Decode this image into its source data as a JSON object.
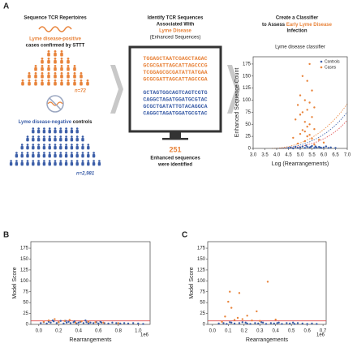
{
  "panel_a": {
    "label": "A",
    "left": {
      "title": "Sequence TCR Repertoires",
      "positive_label": "Lyme disease-positive",
      "positive_sub": "cases confirmed by STTT",
      "n_pos": "n=72",
      "negative_label": "Lyme disease-negative",
      "negative_suffix": "controls",
      "n_neg": "n=2,981"
    },
    "middle": {
      "title_line1": "Identify TCR Sequences",
      "title_line2": "Associated With",
      "highlight": "Lyme Disease",
      "subtitle": "(Enhanced Sequences)",
      "sequences_orange": [
        "TGGAGCTAATCGAGCTAGAC",
        "GCGCGATTAGCATTAGCCCG",
        "TCGGAGCGCGATATTATGAA",
        "GCGCGATTAGCATTAGCCGA"
      ],
      "sequences_blue": [
        "GCTAGTGGCAGTCAGTCGTG",
        "CAGGCTAGATGGATGCGTAC",
        "GCGCTGATATTGTACAGGCA",
        "CAGGCTAGATGGATGCGTAC"
      ],
      "count": "251",
      "count_line1": "Enhanced sequences",
      "count_line2": "were identified"
    },
    "right": {
      "title_line1": "Create a Classifier",
      "title_prefix": "to Assess",
      "highlight": "Early Lyme Disease",
      "title_line3": "Infection"
    }
  },
  "panel_b_label": "B",
  "panel_c_label": "C",
  "chart_data": [
    {
      "type": "scatter",
      "title": "Lyme disease classifier",
      "x_label": "Log (Rearrangements)",
      "y_label": "Enhanced Sequence Count",
      "xlim": [
        3.0,
        7.0
      ],
      "xticks": [
        {
          "value": 3,
          "label": "3.0"
        },
        {
          "value": 3.5,
          "label": "3.5"
        },
        {
          "value": 4,
          "label": "4.0"
        },
        {
          "value": 4.5,
          "label": "4.5"
        },
        {
          "value": 5,
          "label": "5.0"
        },
        {
          "value": 5.5,
          "label": "5.5"
        },
        {
          "value": 6,
          "label": "6.0"
        },
        {
          "value": 6.5,
          "label": "6.5"
        },
        {
          "value": 7,
          "label": "7.0"
        }
      ],
      "ylim": [
        0,
        190
      ],
      "yticks": [
        0,
        25,
        50,
        75,
        100,
        125,
        150,
        175
      ],
      "legend": "upper right",
      "series": [
        {
          "name": "Controls",
          "color": "#3b5ea8",
          "x": [
            4.5,
            4.6,
            4.7,
            4.8,
            4.9,
            5.0,
            5.1,
            5.2,
            5.3,
            5.4,
            5.5,
            5.6,
            5.7,
            5.8,
            5.9,
            6.0,
            6.1,
            6.2,
            6.3,
            6.5,
            5.25,
            5.45,
            5.65,
            5.85
          ],
          "y": [
            1,
            2,
            0,
            3,
            1,
            2,
            4,
            1,
            3,
            2,
            5,
            1,
            2,
            3,
            1,
            2,
            4,
            1,
            2,
            1,
            6,
            3,
            4,
            2
          ]
        },
        {
          "name": "Cases",
          "color": "#e8833a",
          "x": [
            5.4,
            5.1,
            5.3,
            5.5,
            5.0,
            5.2,
            5.4,
            4.9,
            5.6,
            5.3,
            5.1,
            5.0,
            5.5,
            4.8,
            5.2,
            5.4,
            5.3,
            5.6,
            5.1,
            5.2,
            5.0,
            5.4,
            5.3,
            4.7,
            5.5,
            5.8,
            5.2,
            6.0,
            4.9,
            5.6
          ],
          "y": [
            175,
            150,
            140,
            120,
            110,
            100,
            95,
            90,
            85,
            80,
            75,
            70,
            65,
            60,
            55,
            50,
            45,
            40,
            38,
            35,
            30,
            28,
            25,
            22,
            20,
            18,
            15,
            12,
            10,
            8
          ]
        }
      ]
    },
    {
      "type": "scatter",
      "x_label": "Rearrangements",
      "y_label": "Model Score",
      "x_offset_label": "1e6",
      "xlim": [
        -0.08,
        1.12
      ],
      "xticks": [
        {
          "value": 0,
          "label": "0.0"
        },
        {
          "value": 0.2,
          "label": "0.2"
        },
        {
          "value": 0.4,
          "label": "0.4"
        },
        {
          "value": 0.6,
          "label": "0.6"
        },
        {
          "value": 0.8,
          "label": "0.8"
        },
        {
          "value": 1,
          "label": "1.0"
        }
      ],
      "ylim": [
        0,
        190
      ],
      "yticks": [
        0,
        25,
        50,
        75,
        100,
        125,
        150,
        175
      ],
      "threshold": 8,
      "threshold_color": "#e04848",
      "series": [
        {
          "color": "#3b5ea8",
          "x": [
            0.02,
            0.05,
            0.08,
            0.1,
            0.12,
            0.15,
            0.18,
            0.2,
            0.22,
            0.25,
            0.28,
            0.3,
            0.32,
            0.35,
            0.38,
            0.4,
            0.42,
            0.45,
            0.48,
            0.5,
            0.52,
            0.55,
            0.58,
            0.6,
            0.63,
            0.66,
            0.7,
            0.74,
            0.78,
            0.82,
            0.86,
            0.9,
            0.95,
            1.0,
            1.05,
            0.14,
            0.27,
            0.36,
            0.47,
            0.62
          ],
          "y": [
            3,
            5,
            2,
            6,
            4,
            7,
            3,
            5,
            8,
            2,
            4,
            6,
            3,
            5,
            2,
            4,
            6,
            3,
            5,
            2,
            4,
            3,
            5,
            2,
            4,
            3,
            2,
            4,
            3,
            2,
            3,
            2,
            3,
            2,
            1,
            9,
            8,
            7,
            9,
            6
          ]
        },
        {
          "color": "#e8833a",
          "x": [
            0.05,
            0.1,
            0.16,
            0.2,
            0.26,
            0.31,
            0.37,
            0.43,
            0.5,
            0.57,
            0.65,
            0.8
          ],
          "y": [
            6,
            9,
            12,
            5,
            8,
            10,
            4,
            7,
            6,
            5,
            4,
            3
          ]
        }
      ]
    },
    {
      "type": "scatter",
      "x_label": "Rearrangements",
      "y_label": "Model Score",
      "x_offset_label": "1e6",
      "xlim": [
        -0.03,
        0.72
      ],
      "xticks": [
        {
          "value": 0,
          "label": "0.0"
        },
        {
          "value": 0.1,
          "label": "0.1"
        },
        {
          "value": 0.2,
          "label": "0.2"
        },
        {
          "value": 0.3,
          "label": "0.3"
        },
        {
          "value": 0.4,
          "label": "0.4"
        },
        {
          "value": 0.5,
          "label": "0.5"
        },
        {
          "value": 0.6,
          "label": "0.6"
        },
        {
          "value": 0.7,
          "label": "0.7"
        }
      ],
      "ylim": [
        0,
        190
      ],
      "yticks": [
        0,
        25,
        50,
        75,
        100,
        125,
        150,
        175
      ],
      "threshold": 8,
      "threshold_color": "#e04848",
      "series": [
        {
          "color": "#3b5ea8",
          "x": [
            0.04,
            0.07,
            0.09,
            0.12,
            0.14,
            0.17,
            0.19,
            0.22,
            0.24,
            0.27,
            0.29,
            0.32,
            0.34,
            0.37,
            0.39,
            0.42,
            0.44,
            0.47,
            0.49,
            0.52,
            0.54,
            0.57,
            0.6,
            0.63,
            0.66,
            0.11,
            0.21,
            0.31,
            0.41,
            0.51
          ],
          "y": [
            2,
            3,
            1,
            4,
            2,
            3,
            5,
            2,
            1,
            3,
            2,
            4,
            1,
            3,
            2,
            4,
            1,
            3,
            2,
            1,
            3,
            2,
            1,
            2,
            1,
            5,
            4,
            5,
            3,
            4
          ]
        },
        {
          "color": "#e8833a",
          "x": [
            0.08,
            0.1,
            0.11,
            0.12,
            0.17,
            0.22,
            0.28,
            0.35,
            0.14,
            0.19,
            0.25,
            0.06,
            0.3,
            0.4,
            0.16
          ],
          "y": [
            18,
            52,
            75,
            38,
            72,
            20,
            30,
            98,
            10,
            12,
            9,
            6,
            8,
            11,
            15
          ]
        }
      ]
    }
  ]
}
